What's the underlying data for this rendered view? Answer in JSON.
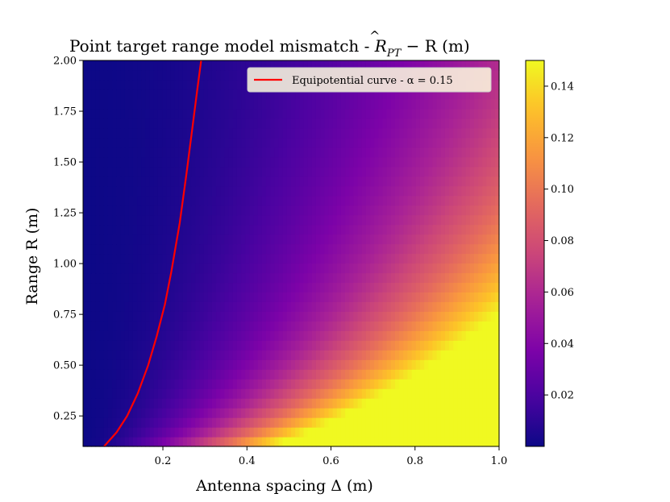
{
  "chart_data": {
    "type": "heatmap",
    "title": "Point target range model mismatch - R̂_PT − R (m)",
    "title_main": "Point target range model mismatch - ",
    "title_math_R": "R",
    "title_math_hat": "^",
    "title_math_sub": "PT",
    "title_math_rest": " − R (m)",
    "xlabel": "Antenna spacing Δ (m)",
    "ylabel": "Range R (m)",
    "xlim": [
      0.01,
      1.0
    ],
    "ylim": [
      0.1,
      2.0
    ],
    "x_ticks": [
      0.2,
      0.4,
      0.6,
      0.8,
      1.0
    ],
    "x_tick_labels": [
      "0.2",
      "0.4",
      "0.6",
      "0.8",
      "1.0"
    ],
    "y_ticks": [
      0.25,
      0.5,
      0.75,
      1.0,
      1.25,
      1.5,
      1.75,
      2.0
    ],
    "y_tick_labels": [
      "0.25",
      "0.50",
      "0.75",
      "1.00",
      "1.25",
      "1.50",
      "1.75",
      "2.00"
    ],
    "value_formula": "min(sqrt(R^2 + (Δ/2)^2) − R, 0.15)",
    "grid": {
      "x_cells": 100,
      "y_cells": 40
    },
    "colorbar": {
      "colormap": "plasma",
      "vmin": 0.0,
      "vmax": 0.15,
      "ticks": [
        0.02,
        0.04,
        0.06,
        0.08,
        0.1,
        0.12,
        0.14
      ],
      "tick_labels": [
        "0.02",
        "0.04",
        "0.06",
        "0.08",
        "0.10",
        "0.12",
        "0.14"
      ]
    },
    "curve": {
      "name": "Equipotential curve - α = 0.15",
      "color": "#ff0000",
      "points": [
        [
          0.06,
          0.1
        ],
        [
          0.09,
          0.17
        ],
        [
          0.115,
          0.25
        ],
        [
          0.14,
          0.36
        ],
        [
          0.165,
          0.5
        ],
        [
          0.185,
          0.64
        ],
        [
          0.205,
          0.8
        ],
        [
          0.22,
          0.96
        ],
        [
          0.24,
          1.2
        ],
        [
          0.256,
          1.44
        ],
        [
          0.271,
          1.68
        ],
        [
          0.282,
          1.86
        ],
        [
          0.291,
          2.0
        ]
      ]
    },
    "legend_position": "upper right"
  }
}
